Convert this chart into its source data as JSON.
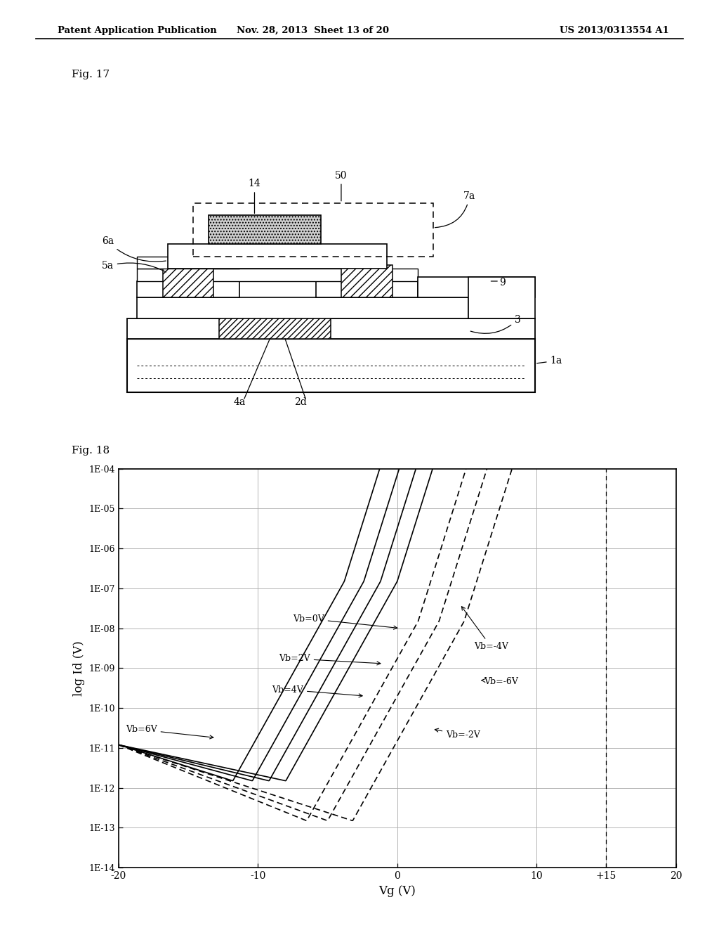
{
  "header_left": "Patent Application Publication",
  "header_mid": "Nov. 28, 2013  Sheet 13 of 20",
  "header_right": "US 2013/0313554 A1",
  "fig17_label": "Fig. 17",
  "fig18_label": "Fig. 18",
  "graph_xlabel": "Vg (V)",
  "graph_ylabel": "log Id (V)",
  "xtick_positions": [
    -20,
    -10,
    0,
    10,
    15,
    20
  ],
  "xtick_labels": [
    "-20",
    "-10",
    "0",
    "10",
    "+15",
    "20"
  ],
  "ytick_labels": [
    "1E-14",
    "1E-13",
    "1E-12",
    "1E-11",
    "1E-10",
    "1E-09",
    "1E-08",
    "1E-07",
    "1E-06",
    "1E-05",
    "1E-04"
  ],
  "vths_solid": [
    0.0,
    -1.2,
    -2.4,
    -3.8
  ],
  "vths_dashed": [
    1.5,
    3.0,
    4.8
  ],
  "bg_color": "#ffffff",
  "note_labels_solid": [
    "Vb=0V",
    "Vb=2V",
    "Vb=4V",
    "Vb=6V"
  ],
  "note_labels_dashed": [
    "Vb=-2V",
    "Vb=-4V",
    "Vb=-6V"
  ]
}
